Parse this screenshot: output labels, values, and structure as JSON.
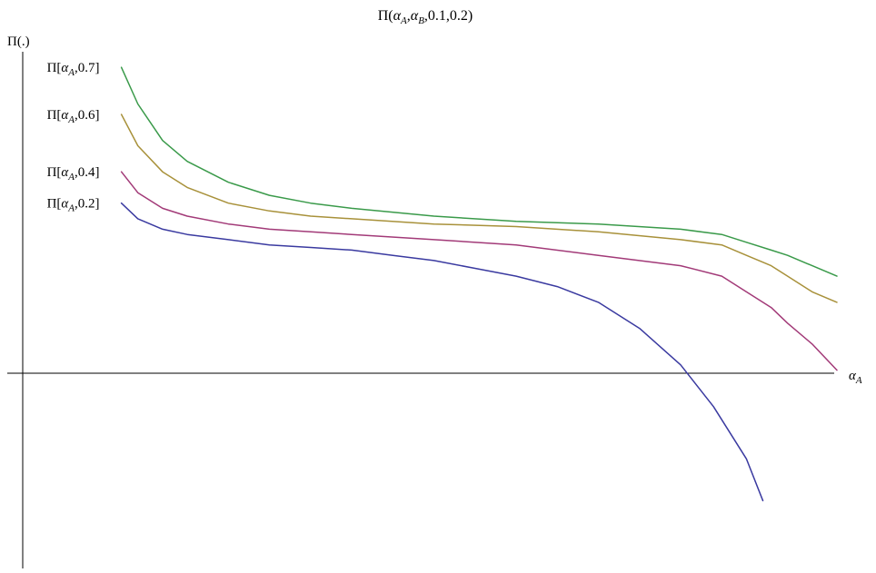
{
  "chart_data": {
    "type": "line",
    "title": "Π(α_A,α_B,0.1,0.2)",
    "ylabel": "Π(.)",
    "xlabel": "α_A",
    "grid": false,
    "xlim": [
      0,
      1
    ],
    "ylim": [
      -0.63,
      0.36
    ],
    "series": [
      {
        "name": "Π[α_A,0.7]",
        "color": "#3a9a4a",
        "x": [
          0.12,
          0.14,
          0.17,
          0.2,
          0.25,
          0.3,
          0.35,
          0.4,
          0.5,
          0.6,
          0.7,
          0.8,
          0.85,
          0.88,
          0.91,
          0.93,
          0.96,
          0.99
        ],
        "y": [
          0.33,
          0.26,
          0.19,
          0.15,
          0.11,
          0.085,
          0.07,
          0.06,
          0.045,
          0.035,
          0.03,
          0.02,
          0.01,
          -0.005,
          -0.02,
          -0.03,
          -0.05,
          -0.07
        ]
      },
      {
        "name": "Π[α_A,0.6]",
        "color": "#a8913a",
        "x": [
          0.12,
          0.14,
          0.17,
          0.2,
          0.25,
          0.3,
          0.35,
          0.4,
          0.5,
          0.6,
          0.7,
          0.8,
          0.85,
          0.88,
          0.91,
          0.93,
          0.96,
          0.99
        ],
        "y": [
          0.24,
          0.18,
          0.13,
          0.1,
          0.07,
          0.055,
          0.045,
          0.04,
          0.03,
          0.025,
          0.015,
          0.0,
          -0.01,
          -0.03,
          -0.05,
          -0.07,
          -0.1,
          -0.12
        ]
      },
      {
        "name": "Π[α_A,0.4]",
        "color": "#a23a78",
        "x": [
          0.12,
          0.14,
          0.17,
          0.2,
          0.25,
          0.3,
          0.35,
          0.4,
          0.5,
          0.6,
          0.7,
          0.8,
          0.85,
          0.88,
          0.91,
          0.93,
          0.96,
          0.99
        ],
        "y": [
          0.13,
          0.09,
          0.06,
          0.045,
          0.03,
          0.02,
          0.015,
          0.01,
          0.0,
          -0.01,
          -0.03,
          -0.05,
          -0.07,
          -0.1,
          -0.13,
          -0.16,
          -0.2,
          -0.25
        ]
      },
      {
        "name": "Π[α_A,0.2]",
        "color": "#3a3aa0",
        "x": [
          0.12,
          0.14,
          0.17,
          0.2,
          0.25,
          0.3,
          0.35,
          0.4,
          0.45,
          0.5,
          0.55,
          0.6,
          0.65,
          0.7,
          0.75,
          0.8,
          0.84,
          0.88,
          0.9
        ],
        "y": [
          0.07,
          0.04,
          0.02,
          0.01,
          0.0,
          -0.01,
          -0.015,
          -0.02,
          -0.03,
          -0.04,
          -0.055,
          -0.07,
          -0.09,
          -0.12,
          -0.17,
          -0.24,
          -0.32,
          -0.42,
          -0.5
        ]
      }
    ]
  }
}
